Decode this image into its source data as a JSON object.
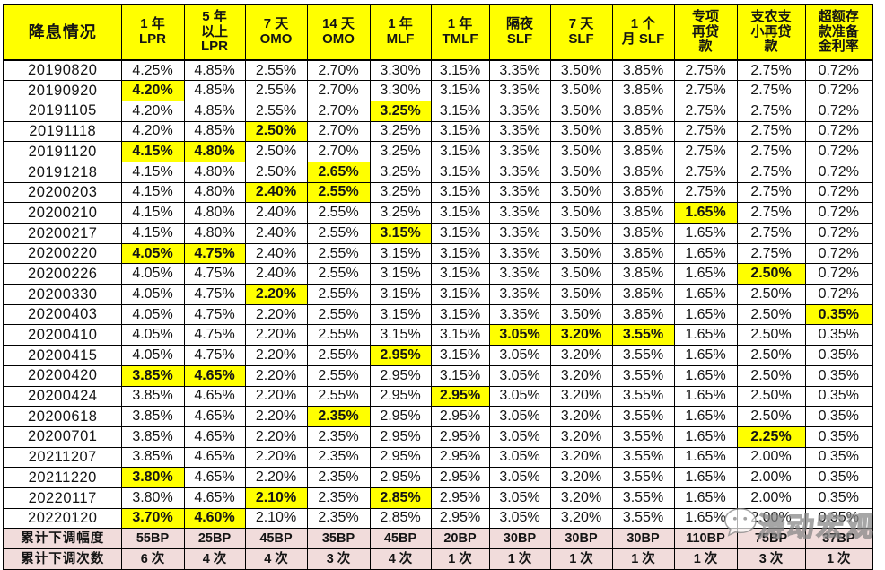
{
  "chart_data": {
    "type": "table",
    "title": "降息情况",
    "columns": [
      {
        "key": "lpr-1y",
        "label": "1 年\nLPR"
      },
      {
        "key": "lpr-5y",
        "label": "5 年\n以上\nLPR"
      },
      {
        "key": "omo-7d",
        "label": "7 天\nOMO"
      },
      {
        "key": "omo-14d",
        "label": "14 天\nOMO"
      },
      {
        "key": "mlf-1y",
        "label": "1 年\nMLF"
      },
      {
        "key": "tmlf-1y",
        "label": "1 年\nTMLF"
      },
      {
        "key": "slf-overnight",
        "label": "隔夜\nSLF"
      },
      {
        "key": "slf-7d",
        "label": "7 天\nSLF"
      },
      {
        "key": "slf-1m",
        "label": "1 个\n月 SLF"
      },
      {
        "key": "special-relending",
        "label": "专项\n再贷\n款"
      },
      {
        "key": "agri-sme-relending",
        "label": "支农支\n小再贷\n款"
      },
      {
        "key": "excess-reserve",
        "label": "超额存\n款准备\n金利率"
      }
    ],
    "rows": [
      {
        "date": "20190820",
        "values": [
          "4.25%",
          "4.85%",
          "2.55%",
          "2.70%",
          "3.30%",
          "3.15%",
          "3.35%",
          "3.50%",
          "3.85%",
          "2.75%",
          "2.75%",
          "0.72%"
        ],
        "highlights": []
      },
      {
        "date": "20190920",
        "values": [
          "4.20%",
          "4.85%",
          "2.55%",
          "2.70%",
          "3.30%",
          "3.15%",
          "3.35%",
          "3.50%",
          "3.85%",
          "2.75%",
          "2.75%",
          "0.72%"
        ],
        "highlights": [
          0
        ]
      },
      {
        "date": "20191105",
        "values": [
          "4.20%",
          "4.85%",
          "2.55%",
          "2.70%",
          "3.25%",
          "3.15%",
          "3.35%",
          "3.50%",
          "3.85%",
          "2.75%",
          "2.75%",
          "0.72%"
        ],
        "highlights": [
          4
        ]
      },
      {
        "date": "20191118",
        "values": [
          "4.20%",
          "4.85%",
          "2.50%",
          "2.70%",
          "3.25%",
          "3.15%",
          "3.35%",
          "3.50%",
          "3.85%",
          "2.75%",
          "2.75%",
          "0.72%"
        ],
        "highlights": [
          2
        ]
      },
      {
        "date": "20191120",
        "values": [
          "4.15%",
          "4.80%",
          "2.50%",
          "2.70%",
          "3.25%",
          "3.15%",
          "3.35%",
          "3.50%",
          "3.85%",
          "2.75%",
          "2.75%",
          "0.72%"
        ],
        "highlights": [
          0,
          1
        ]
      },
      {
        "date": "20191218",
        "values": [
          "4.15%",
          "4.80%",
          "2.50%",
          "2.65%",
          "3.25%",
          "3.15%",
          "3.35%",
          "3.50%",
          "3.85%",
          "2.75%",
          "2.75%",
          "0.72%"
        ],
        "highlights": [
          3
        ]
      },
      {
        "date": "20200203",
        "values": [
          "4.15%",
          "4.80%",
          "2.40%",
          "2.55%",
          "3.25%",
          "3.15%",
          "3.35%",
          "3.50%",
          "3.85%",
          "2.75%",
          "2.75%",
          "0.72%"
        ],
        "highlights": [
          2,
          3
        ]
      },
      {
        "date": "20200210",
        "values": [
          "4.15%",
          "4.80%",
          "2.40%",
          "2.55%",
          "3.25%",
          "3.15%",
          "3.35%",
          "3.50%",
          "3.85%",
          "1.65%",
          "2.75%",
          "0.72%"
        ],
        "highlights": [
          9
        ]
      },
      {
        "date": "20200217",
        "values": [
          "4.15%",
          "4.80%",
          "2.40%",
          "2.55%",
          "3.15%",
          "3.15%",
          "3.35%",
          "3.50%",
          "3.85%",
          "1.65%",
          "2.75%",
          "0.72%"
        ],
        "highlights": [
          4
        ]
      },
      {
        "date": "20200220",
        "values": [
          "4.05%",
          "4.75%",
          "2.40%",
          "2.55%",
          "3.15%",
          "3.15%",
          "3.35%",
          "3.50%",
          "3.85%",
          "1.65%",
          "2.75%",
          "0.72%"
        ],
        "highlights": [
          0,
          1
        ]
      },
      {
        "date": "20200226",
        "values": [
          "4.05%",
          "4.75%",
          "2.40%",
          "2.55%",
          "3.15%",
          "3.15%",
          "3.35%",
          "3.50%",
          "3.85%",
          "1.65%",
          "2.50%",
          "0.72%"
        ],
        "highlights": [
          10
        ]
      },
      {
        "date": "20200330",
        "values": [
          "4.05%",
          "4.75%",
          "2.20%",
          "2.55%",
          "3.15%",
          "3.15%",
          "3.35%",
          "3.50%",
          "3.85%",
          "1.65%",
          "2.50%",
          "0.72%"
        ],
        "highlights": [
          2
        ]
      },
      {
        "date": "20200403",
        "values": [
          "4.05%",
          "4.75%",
          "2.20%",
          "2.55%",
          "3.15%",
          "3.15%",
          "3.35%",
          "3.50%",
          "3.85%",
          "1.65%",
          "2.50%",
          "0.35%"
        ],
        "highlights": [
          11
        ]
      },
      {
        "date": "20200410",
        "values": [
          "4.05%",
          "4.75%",
          "2.20%",
          "2.55%",
          "3.15%",
          "3.15%",
          "3.05%",
          "3.20%",
          "3.55%",
          "1.65%",
          "2.50%",
          "0.35%"
        ],
        "highlights": [
          6,
          7,
          8
        ]
      },
      {
        "date": "20200415",
        "values": [
          "4.05%",
          "4.75%",
          "2.20%",
          "2.55%",
          "2.95%",
          "3.15%",
          "3.05%",
          "3.20%",
          "3.55%",
          "1.65%",
          "2.50%",
          "0.35%"
        ],
        "highlights": [
          4
        ]
      },
      {
        "date": "20200420",
        "values": [
          "3.85%",
          "4.65%",
          "2.20%",
          "2.55%",
          "2.95%",
          "3.15%",
          "3.05%",
          "3.20%",
          "3.55%",
          "1.65%",
          "2.50%",
          "0.35%"
        ],
        "highlights": [
          0,
          1
        ]
      },
      {
        "date": "20200424",
        "values": [
          "3.85%",
          "4.65%",
          "2.20%",
          "2.55%",
          "2.95%",
          "2.95%",
          "3.05%",
          "3.20%",
          "3.55%",
          "1.65%",
          "2.50%",
          "0.35%"
        ],
        "highlights": [
          5
        ]
      },
      {
        "date": "20200618",
        "values": [
          "3.85%",
          "4.65%",
          "2.20%",
          "2.35%",
          "2.95%",
          "2.95%",
          "3.05%",
          "3.20%",
          "3.55%",
          "1.65%",
          "2.50%",
          "0.35%"
        ],
        "highlights": [
          3
        ]
      },
      {
        "date": "20200701",
        "values": [
          "3.85%",
          "4.65%",
          "2.20%",
          "2.35%",
          "2.95%",
          "2.95%",
          "3.05%",
          "3.20%",
          "3.55%",
          "1.65%",
          "2.25%",
          "0.35%"
        ],
        "highlights": [
          10
        ]
      },
      {
        "date": "20211207",
        "values": [
          "3.85%",
          "4.65%",
          "2.20%",
          "2.35%",
          "2.95%",
          "2.95%",
          "3.05%",
          "3.20%",
          "3.55%",
          "1.65%",
          "2.00%",
          "0.35%"
        ],
        "highlights": []
      },
      {
        "date": "20211220",
        "values": [
          "3.80%",
          "4.65%",
          "2.20%",
          "2.35%",
          "2.95%",
          "2.95%",
          "3.05%",
          "3.20%",
          "3.55%",
          "1.65%",
          "2.00%",
          "0.35%"
        ],
        "highlights": [
          0
        ]
      },
      {
        "date": "20220117",
        "values": [
          "3.80%",
          "4.65%",
          "2.10%",
          "2.35%",
          "2.85%",
          "2.95%",
          "3.05%",
          "3.20%",
          "3.55%",
          "1.65%",
          "2.00%",
          "0.35%"
        ],
        "highlights": [
          2,
          4
        ]
      },
      {
        "date": "20220120",
        "values": [
          "3.70%",
          "4.60%",
          "2.10%",
          "2.35%",
          "2.85%",
          "2.95%",
          "3.05%",
          "3.20%",
          "3.55%",
          "1.65%",
          "2.00%",
          "0.35%"
        ],
        "highlights": [
          0,
          1
        ]
      }
    ],
    "summary": [
      {
        "label": "累计下调幅度",
        "values": [
          "55BP",
          "25BP",
          "45BP",
          "35BP",
          "45BP",
          "20BP",
          "30BP",
          "30BP",
          "30BP",
          "110BP",
          "75BP",
          "37BP"
        ]
      },
      {
        "label": "累计下调次数",
        "values": [
          "6 次",
          "4 次",
          "4 次",
          "3 次",
          "4 次",
          "1 次",
          "1 次",
          "1 次",
          "1 次",
          "1 次",
          "3 次",
          "1 次"
        ]
      }
    ],
    "layout": {
      "header_bg": "#FFFF00",
      "highlight_bg": "#FFFF00",
      "summary_bg": "#F1DCDB",
      "border_color": "#000000",
      "grid": true
    }
  },
  "watermark": {
    "text": "涛动宏观",
    "icon": "wechat-logo"
  }
}
